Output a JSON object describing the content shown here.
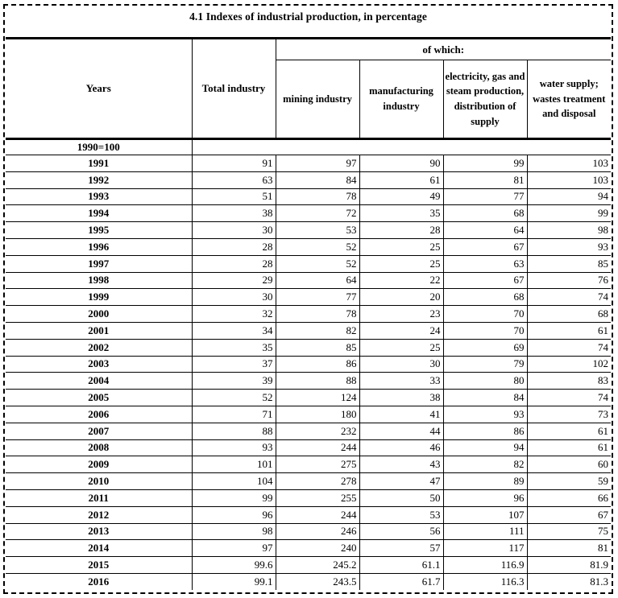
{
  "title": "4.1 Indexes of industrial production, in percentage",
  "table": {
    "col_years": "Years",
    "col_total": "Total industry",
    "group_header": "of which:",
    "subcols": [
      "mining industry",
      "manufacturing industry",
      "electricity, gas and steam production, distribution of supply",
      "water supply; wastes treatment and disposal"
    ],
    "base_row_label": "1990=100",
    "rows": [
      {
        "year": "1991",
        "values": [
          "91",
          "97",
          "90",
          "99",
          "103"
        ]
      },
      {
        "year": "1992",
        "values": [
          "63",
          "84",
          "61",
          "81",
          "103"
        ]
      },
      {
        "year": "1993",
        "values": [
          "51",
          "78",
          "49",
          "77",
          "94"
        ]
      },
      {
        "year": "1994",
        "values": [
          "38",
          "72",
          "35",
          "68",
          "99"
        ]
      },
      {
        "year": "1995",
        "values": [
          "30",
          "53",
          "28",
          "64",
          "98"
        ]
      },
      {
        "year": "1996",
        "values": [
          "28",
          "52",
          "25",
          "67",
          "93"
        ]
      },
      {
        "year": "1997",
        "values": [
          "28",
          "52",
          "25",
          "63",
          "85"
        ]
      },
      {
        "year": "1998",
        "values": [
          "29",
          "64",
          "22",
          "67",
          "76"
        ]
      },
      {
        "year": "1999",
        "values": [
          "30",
          "77",
          "20",
          "68",
          "74"
        ]
      },
      {
        "year": "2000",
        "values": [
          "32",
          "78",
          "23",
          "70",
          "68"
        ]
      },
      {
        "year": "2001",
        "values": [
          "34",
          "82",
          "24",
          "70",
          "61"
        ]
      },
      {
        "year": "2002",
        "values": [
          "35",
          "85",
          "25",
          "69",
          "74"
        ]
      },
      {
        "year": "2003",
        "values": [
          "37",
          "86",
          "30",
          "79",
          "102"
        ]
      },
      {
        "year": "2004",
        "values": [
          "39",
          "88",
          "33",
          "80",
          "83"
        ]
      },
      {
        "year": "2005",
        "values": [
          "52",
          "124",
          "38",
          "84",
          "74"
        ]
      },
      {
        "year": "2006",
        "values": [
          "71",
          "180",
          "41",
          "93",
          "73"
        ]
      },
      {
        "year": "2007",
        "values": [
          "88",
          "232",
          "44",
          "86",
          "61"
        ]
      },
      {
        "year": "2008",
        "values": [
          "93",
          "244",
          "46",
          "94",
          "61"
        ]
      },
      {
        "year": "2009",
        "values": [
          "101",
          "275",
          "43",
          "82",
          "60"
        ]
      },
      {
        "year": "2010",
        "values": [
          "104",
          "278",
          "47",
          "89",
          "59"
        ]
      },
      {
        "year": "2011",
        "values": [
          "99",
          "255",
          "50",
          "96",
          "66"
        ]
      },
      {
        "year": "2012",
        "values": [
          "96",
          "244",
          "53",
          "107",
          "67"
        ]
      },
      {
        "year": "2013",
        "values": [
          "98",
          "246",
          "56",
          "111",
          "75"
        ]
      },
      {
        "year": "2014",
        "values": [
          "97",
          "240",
          "57",
          "117",
          "81"
        ]
      },
      {
        "year": "2015",
        "values": [
          "99.6",
          "245.2",
          "61.1",
          "116.9",
          "81.9"
        ]
      },
      {
        "year": "2016",
        "values": [
          "99.1",
          "243.5",
          "61.7",
          "116.3",
          "81.3"
        ]
      }
    ]
  }
}
